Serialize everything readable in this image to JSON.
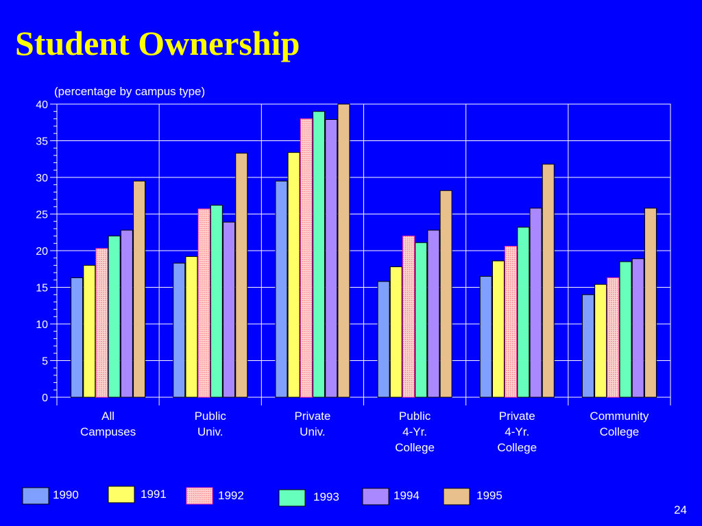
{
  "slide": {
    "title": "Student Ownership",
    "subtitle": "(percentage by campus type)",
    "page_number": "24"
  },
  "chart_data": {
    "type": "bar",
    "title": "Student Ownership",
    "subtitle": "(percentage by campus type)",
    "xlabel": "",
    "ylabel": "",
    "ylim": [
      0,
      40
    ],
    "y_ticks": [
      0,
      5,
      10,
      15,
      20,
      25,
      30,
      35,
      40
    ],
    "grid": true,
    "legend_position": "bottom",
    "categories": [
      [
        "All",
        "Campuses"
      ],
      [
        "Public",
        "Univ."
      ],
      [
        "Private",
        "Univ."
      ],
      [
        "Public",
        "4-Yr.",
        "College"
      ],
      [
        "Private",
        "4-Yr.",
        "College"
      ],
      [
        "Community",
        "College"
      ]
    ],
    "series": [
      {
        "name": "1990",
        "color": "#7fa0ff",
        "pattern": "solid",
        "values": [
          16.3,
          18.3,
          29.5,
          15.8,
          16.5,
          14.0
        ]
      },
      {
        "name": "1991",
        "color": "#ffff66",
        "pattern": "solid",
        "values": [
          18.0,
          19.2,
          33.4,
          17.8,
          18.6,
          15.4
        ]
      },
      {
        "name": "1992",
        "color": "#ffaaaa",
        "pattern": "dotted",
        "border": "#ff3399",
        "values": [
          20.3,
          25.7,
          38.0,
          22.0,
          20.6,
          16.3
        ]
      },
      {
        "name": "1993",
        "color": "#66ffbb",
        "pattern": "solid",
        "values": [
          22.0,
          26.2,
          39.0,
          21.1,
          23.2,
          18.5
        ]
      },
      {
        "name": "1994",
        "color": "#aa88ff",
        "pattern": "solid",
        "values": [
          22.8,
          23.9,
          37.9,
          22.8,
          25.8,
          18.9
        ]
      },
      {
        "name": "1995",
        "color": "#e8c08c",
        "pattern": "solid",
        "values": [
          29.5,
          33.3,
          40.0,
          28.2,
          31.8,
          25.8
        ]
      }
    ]
  }
}
